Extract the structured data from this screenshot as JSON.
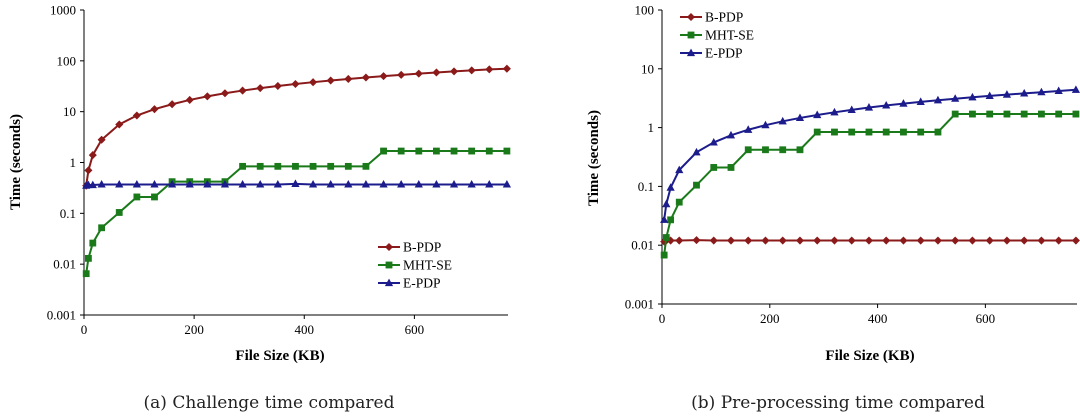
{
  "colors": {
    "B-PDP": "#8b1a1a",
    "MHT-SE": "#1a7a1a",
    "E-PDP": "#1c1c8c"
  },
  "markers": {
    "B-PDP": "diamond",
    "MHT-SE": "square",
    "E-PDP": "triangle"
  },
  "chart_data": [
    {
      "type": "line",
      "caption": "(a)  Challenge time compared",
      "xlabel": "File Size (KB)",
      "ylabel": "Time (seconds)",
      "yscale": "log",
      "xlim": [
        0,
        770
      ],
      "ylim": [
        0.001,
        1000
      ],
      "xticks": [
        "0",
        "200",
        "400",
        "600"
      ],
      "yticks": [
        "0.001",
        "0.01",
        "0.1",
        "1",
        "10",
        "100",
        "1000"
      ],
      "legend_position": "lower-right",
      "legend": [
        "B-PDP",
        "MHT-SE",
        "E-PDP"
      ],
      "x": [
        4,
        8,
        16,
        32,
        64,
        96,
        128,
        160,
        192,
        224,
        256,
        288,
        320,
        352,
        384,
        416,
        448,
        480,
        512,
        544,
        576,
        608,
        640,
        672,
        704,
        736,
        768
      ],
      "series": [
        {
          "name": "B-PDP",
          "values": [
            0.35,
            0.7,
            1.4,
            2.8,
            5.6,
            8.4,
            11.2,
            14,
            17,
            20,
            23,
            26,
            29,
            32,
            35,
            38,
            41,
            44,
            47,
            50,
            53,
            56,
            59,
            62,
            65,
            68,
            70
          ]
        },
        {
          "name": "MHT-SE",
          "values": [
            0.0065,
            0.013,
            0.026,
            0.052,
            0.104,
            0.21,
            0.21,
            0.42,
            0.42,
            0.42,
            0.42,
            0.84,
            0.84,
            0.84,
            0.84,
            0.84,
            0.84,
            0.84,
            0.84,
            1.68,
            1.68,
            1.68,
            1.68,
            1.68,
            1.68,
            1.68,
            1.68
          ]
        },
        {
          "name": "E-PDP",
          "values": [
            0.35,
            0.36,
            0.36,
            0.37,
            0.37,
            0.37,
            0.37,
            0.37,
            0.37,
            0.37,
            0.37,
            0.37,
            0.37,
            0.37,
            0.38,
            0.37,
            0.37,
            0.37,
            0.37,
            0.37,
            0.37,
            0.37,
            0.37,
            0.37,
            0.37,
            0.37,
            0.37
          ]
        }
      ]
    },
    {
      "type": "line",
      "caption": "(b)  Pre-processing time compared",
      "xlabel": "File Size (KB)",
      "ylabel": "Time (seconds)",
      "yscale": "log",
      "xlim": [
        0,
        770
      ],
      "ylim": [
        0.001,
        100
      ],
      "xticks": [
        "0",
        "200",
        "400",
        "600"
      ],
      "yticks": [
        "0.001",
        "0.01",
        "0.1",
        "1",
        "10",
        "100"
      ],
      "legend_position": "top-left",
      "legend": [
        "B-PDP",
        "MHT-SE",
        "E-PDP"
      ],
      "x": [
        4,
        8,
        16,
        32,
        64,
        96,
        128,
        160,
        192,
        224,
        256,
        288,
        320,
        352,
        384,
        416,
        448,
        480,
        512,
        544,
        576,
        608,
        640,
        672,
        704,
        736,
        768
      ],
      "series": [
        {
          "name": "B-PDP",
          "values": [
            0.0115,
            0.012,
            0.012,
            0.012,
            0.0122,
            0.012,
            0.012,
            0.012,
            0.012,
            0.012,
            0.012,
            0.012,
            0.012,
            0.012,
            0.012,
            0.012,
            0.012,
            0.012,
            0.012,
            0.012,
            0.012,
            0.012,
            0.012,
            0.012,
            0.012,
            0.012,
            0.012
          ]
        },
        {
          "name": "MHT-SE",
          "values": [
            0.0068,
            0.0135,
            0.027,
            0.054,
            0.105,
            0.21,
            0.21,
            0.42,
            0.42,
            0.42,
            0.42,
            0.84,
            0.84,
            0.84,
            0.84,
            0.84,
            0.84,
            0.84,
            0.84,
            1.7,
            1.7,
            1.7,
            1.7,
            1.7,
            1.7,
            1.7,
            1.7
          ]
        },
        {
          "name": "E-PDP",
          "values": [
            0.027,
            0.05,
            0.095,
            0.19,
            0.38,
            0.56,
            0.74,
            0.92,
            1.1,
            1.28,
            1.46,
            1.64,
            1.82,
            2.0,
            2.2,
            2.38,
            2.56,
            2.74,
            2.92,
            3.1,
            3.28,
            3.46,
            3.64,
            3.82,
            4.0,
            4.2,
            4.4
          ]
        }
      ]
    }
  ]
}
